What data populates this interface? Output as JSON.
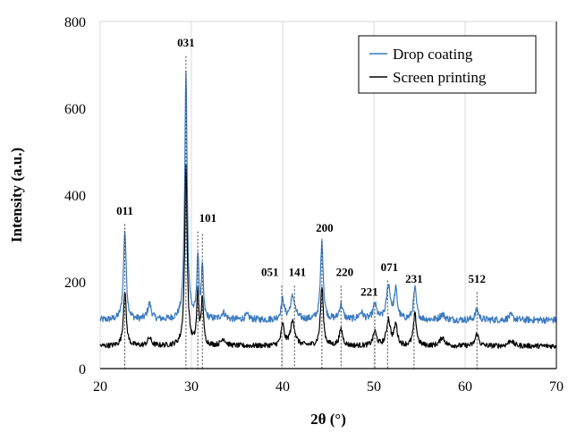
{
  "chart_data": {
    "type": "line",
    "title": "",
    "xlabel": "2θ (°)",
    "ylabel": "Intensity (a.u.)",
    "xlim": [
      20,
      70
    ],
    "ylim": [
      0,
      800
    ],
    "x_ticks": [
      "20",
      "30",
      "40",
      "50",
      "60",
      "70"
    ],
    "y_ticks": [
      "0",
      "200",
      "400",
      "600",
      "800"
    ],
    "grid": "vertical",
    "legend_position": "top-right",
    "colors": {
      "drop": "#3a7abf",
      "screen": "#000000",
      "marker": "#444444"
    },
    "series": [
      {
        "name": "Drop coating",
        "baseline": 112,
        "peaks": [
          {
            "x": 22.7,
            "y": 318,
            "w": 0.18
          },
          {
            "x": 25.4,
            "y": 148,
            "w": 0.25
          },
          {
            "x": 29.4,
            "y": 680,
            "w": 0.16
          },
          {
            "x": 30.7,
            "y": 253,
            "w": 0.13
          },
          {
            "x": 31.2,
            "y": 228,
            "w": 0.13
          },
          {
            "x": 33.5,
            "y": 128,
            "w": 0.3
          },
          {
            "x": 36.1,
            "y": 122,
            "w": 0.3
          },
          {
            "x": 40.0,
            "y": 158,
            "w": 0.2
          },
          {
            "x": 41.1,
            "y": 165,
            "w": 0.3
          },
          {
            "x": 44.3,
            "y": 290,
            "w": 0.18
          },
          {
            "x": 46.4,
            "y": 148,
            "w": 0.22
          },
          {
            "x": 48.6,
            "y": 128,
            "w": 0.3
          },
          {
            "x": 50.1,
            "y": 148,
            "w": 0.22
          },
          {
            "x": 51.6,
            "y": 190,
            "w": 0.25
          },
          {
            "x": 52.4,
            "y": 178,
            "w": 0.2
          },
          {
            "x": 54.5,
            "y": 183,
            "w": 0.2
          },
          {
            "x": 57.5,
            "y": 125,
            "w": 0.3
          },
          {
            "x": 61.3,
            "y": 135,
            "w": 0.22
          },
          {
            "x": 65.0,
            "y": 122,
            "w": 0.3
          }
        ]
      },
      {
        "name": "Screen printing",
        "baseline": 52,
        "peaks": [
          {
            "x": 22.7,
            "y": 180,
            "w": 0.18
          },
          {
            "x": 25.4,
            "y": 70,
            "w": 0.25
          },
          {
            "x": 29.4,
            "y": 470,
            "w": 0.16
          },
          {
            "x": 30.7,
            "y": 170,
            "w": 0.14
          },
          {
            "x": 31.2,
            "y": 160,
            "w": 0.14
          },
          {
            "x": 33.5,
            "y": 68,
            "w": 0.3
          },
          {
            "x": 40.0,
            "y": 100,
            "w": 0.2
          },
          {
            "x": 41.1,
            "y": 108,
            "w": 0.3
          },
          {
            "x": 44.3,
            "y": 188,
            "w": 0.18
          },
          {
            "x": 46.4,
            "y": 90,
            "w": 0.22
          },
          {
            "x": 50.1,
            "y": 85,
            "w": 0.22
          },
          {
            "x": 51.6,
            "y": 112,
            "w": 0.25
          },
          {
            "x": 52.4,
            "y": 100,
            "w": 0.2
          },
          {
            "x": 54.5,
            "y": 125,
            "w": 0.2
          },
          {
            "x": 57.5,
            "y": 72,
            "w": 0.3
          },
          {
            "x": 61.3,
            "y": 80,
            "w": 0.22
          },
          {
            "x": 65.0,
            "y": 65,
            "w": 0.3
          }
        ]
      }
    ],
    "annotations": [
      {
        "label": "011",
        "x": 22.7,
        "label_x": 22.7,
        "label_y": 355
      },
      {
        "label": "031",
        "x": 29.4,
        "label_x": 29.4,
        "label_y": 742
      },
      {
        "label": "101",
        "x": 30.7,
        "label_x": 31.8,
        "label_y": 338
      },
      {
        "label": "",
        "x": 31.2
      },
      {
        "label": "051",
        "x": 39.9,
        "label_x": 38.6,
        "label_y": 213
      },
      {
        "label": "141",
        "x": 41.3,
        "label_x": 41.6,
        "label_y": 213
      },
      {
        "label": "200",
        "x": 44.3,
        "label_x": 44.6,
        "label_y": 315
      },
      {
        "label": "220",
        "x": 46.4,
        "label_x": 46.8,
        "label_y": 213
      },
      {
        "label": "221",
        "x": 50.1,
        "label_x": 49.5,
        "label_y": 168
      },
      {
        "label": "071",
        "x": 51.5,
        "label_x": 51.7,
        "label_y": 225
      },
      {
        "label": "231",
        "x": 54.4,
        "label_x": 54.4,
        "label_y": 198
      },
      {
        "label": "512",
        "x": 61.3,
        "label_x": 61.3,
        "label_y": 198
      }
    ]
  }
}
